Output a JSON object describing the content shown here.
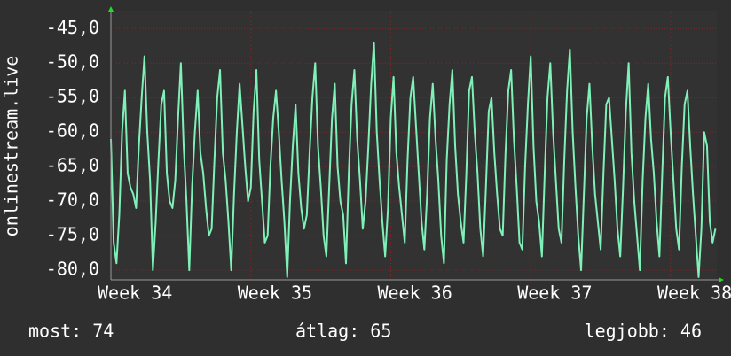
{
  "chart_data": {
    "type": "line",
    "ylabel": "onlinestream.live",
    "color": "#7ff0b8",
    "grid": true,
    "xlim": [
      34,
      38.33
    ],
    "xticks": [
      {
        "value": 34,
        "label": "Week 34"
      },
      {
        "value": 35,
        "label": "Week 35"
      },
      {
        "value": 36,
        "label": "Week 36"
      },
      {
        "value": 37,
        "label": "Week 37"
      },
      {
        "value": 38,
        "label": "Week 38"
      }
    ],
    "ylim": [
      -81.4,
      -42.4
    ],
    "yticks": [
      {
        "value": -80,
        "label": "-80,0"
      },
      {
        "value": -75,
        "label": "-75,0"
      },
      {
        "value": -70,
        "label": "-70,0"
      },
      {
        "value": -65,
        "label": "-65,0"
      },
      {
        "value": -60,
        "label": "-60,0"
      },
      {
        "value": -55,
        "label": "-55,0"
      },
      {
        "value": -50,
        "label": "-50,0"
      },
      {
        "value": -45,
        "label": "-45,0"
      }
    ],
    "x": [
      34,
      34.02,
      34.04,
      34.06,
      34.08,
      34.1,
      34.12,
      34.14,
      34.16,
      34.18,
      34.2,
      34.22,
      34.24,
      34.26,
      34.28,
      34.3,
      34.32,
      34.34,
      34.36,
      34.38,
      34.4,
      34.42,
      34.44,
      34.46,
      34.48,
      34.5,
      34.52,
      34.54,
      34.56,
      34.58,
      34.6,
      34.62,
      34.64,
      34.66,
      34.68,
      34.7,
      34.72,
      34.74,
      34.76,
      34.78,
      34.8,
      34.82,
      34.84,
      34.86,
      34.88,
      34.9,
      34.92,
      34.94,
      34.96,
      34.98,
      35,
      35.02,
      35.04,
      35.06,
      35.08,
      35.1,
      35.12,
      35.14,
      35.16,
      35.18,
      35.2,
      35.22,
      35.24,
      35.26,
      35.28,
      35.3,
      35.32,
      35.34,
      35.36,
      35.38,
      35.4,
      35.42,
      35.44,
      35.46,
      35.48,
      35.5,
      35.52,
      35.54,
      35.56,
      35.58,
      35.6,
      35.62,
      35.64,
      35.66,
      35.68,
      35.7,
      35.72,
      35.74,
      35.76,
      35.78,
      35.8,
      35.82,
      35.84,
      35.86,
      35.88,
      35.9,
      35.92,
      35.94,
      35.96,
      35.98,
      36,
      36.02,
      36.04,
      36.06,
      36.08,
      36.1,
      36.12,
      36.14,
      36.16,
      36.18,
      36.2,
      36.22,
      36.24,
      36.26,
      36.28,
      36.3,
      36.32,
      36.34,
      36.36,
      36.38,
      36.4,
      36.42,
      36.44,
      36.46,
      36.48,
      36.5,
      36.52,
      36.54,
      36.56,
      36.58,
      36.6,
      36.62,
      36.64,
      36.66,
      36.68,
      36.7,
      36.72,
      36.74,
      36.76,
      36.78,
      36.8,
      36.82,
      36.84,
      36.86,
      36.88,
      36.9,
      36.92,
      36.94,
      36.96,
      36.98,
      37,
      37.02,
      37.04,
      37.06,
      37.08,
      37.1,
      37.12,
      37.14,
      37.16,
      37.18,
      37.2,
      37.22,
      37.24,
      37.26,
      37.28,
      37.3,
      37.32,
      37.34,
      37.36,
      37.38,
      37.4,
      37.42,
      37.44,
      37.46,
      37.48,
      37.5,
      37.52,
      37.54,
      37.56,
      37.58,
      37.6,
      37.62,
      37.64,
      37.66,
      37.68,
      37.7,
      37.72,
      37.74,
      37.76,
      37.78,
      37.8,
      37.82,
      37.84,
      37.86,
      37.88,
      37.9,
      37.92,
      37.94,
      37.96,
      37.98,
      38,
      38.02,
      38.04,
      38.06,
      38.08,
      38.1,
      38.12,
      38.14,
      38.16,
      38.18,
      38.2,
      38.22,
      38.24,
      38.26,
      38.28,
      38.3,
      38.32
    ],
    "values": [
      -61,
      -76,
      -79,
      -72,
      -60,
      -54,
      -66,
      -68,
      -69,
      -71,
      -62,
      -55,
      -49,
      -60,
      -67,
      -80,
      -73,
      -64,
      -56,
      -54,
      -66,
      -70,
      -71,
      -67,
      -58,
      -50,
      -62,
      -70,
      -80,
      -68,
      -60,
      -54,
      -63,
      -66,
      -71,
      -75,
      -74,
      -64,
      -55,
      -51,
      -63,
      -67,
      -73,
      -80,
      -69,
      -60,
      -53,
      -59,
      -65,
      -70,
      -68,
      -57,
      -51,
      -64,
      -70,
      -76,
      -75,
      -65,
      -58,
      -54,
      -60,
      -67,
      -73,
      -81,
      -70,
      -62,
      -56,
      -66,
      -71,
      -74,
      -72,
      -63,
      -55,
      -50,
      -62,
      -68,
      -75,
      -78,
      -68,
      -58,
      -53,
      -65,
      -70,
      -72,
      -79,
      -66,
      -56,
      -51,
      -61,
      -67,
      -74,
      -70,
      -62,
      -53,
      -47,
      -60,
      -67,
      -73,
      -78,
      -71,
      -58,
      -52,
      -63,
      -68,
      -72,
      -76,
      -64,
      -55,
      -52,
      -59,
      -66,
      -73,
      -77,
      -69,
      -58,
      -53,
      -61,
      -67,
      -75,
      -79,
      -64,
      -56,
      -51,
      -62,
      -69,
      -73,
      -76,
      -66,
      -54,
      -52,
      -60,
      -66,
      -74,
      -78,
      -68,
      -57,
      -55,
      -63,
      -69,
      -74,
      -75,
      -63,
      -54,
      -51,
      -61,
      -68,
      -76,
      -77,
      -65,
      -56,
      -49,
      -62,
      -70,
      -73,
      -78,
      -66,
      -55,
      -50,
      -60,
      -67,
      -74,
      -76,
      -64,
      -54,
      -48,
      -60,
      -68,
      -75,
      -80,
      -69,
      -58,
      -53,
      -62,
      -69,
      -73,
      -77,
      -66,
      -56,
      -55,
      -61,
      -67,
      -74,
      -78,
      -68,
      -57,
      -50,
      -63,
      -70,
      -75,
      -80,
      -67,
      -58,
      -53,
      -61,
      -66,
      -73,
      -78,
      -66,
      -55,
      -52,
      -60,
      -67,
      -74,
      -77,
      -65,
      -56,
      -54,
      -62,
      -69,
      -75,
      -81,
      -74,
      -60,
      -62,
      -73,
      -76,
      -74
    ],
    "footer": {
      "current": "most: 74",
      "average": "átlag: 65",
      "best": "legjobb: 46"
    }
  }
}
